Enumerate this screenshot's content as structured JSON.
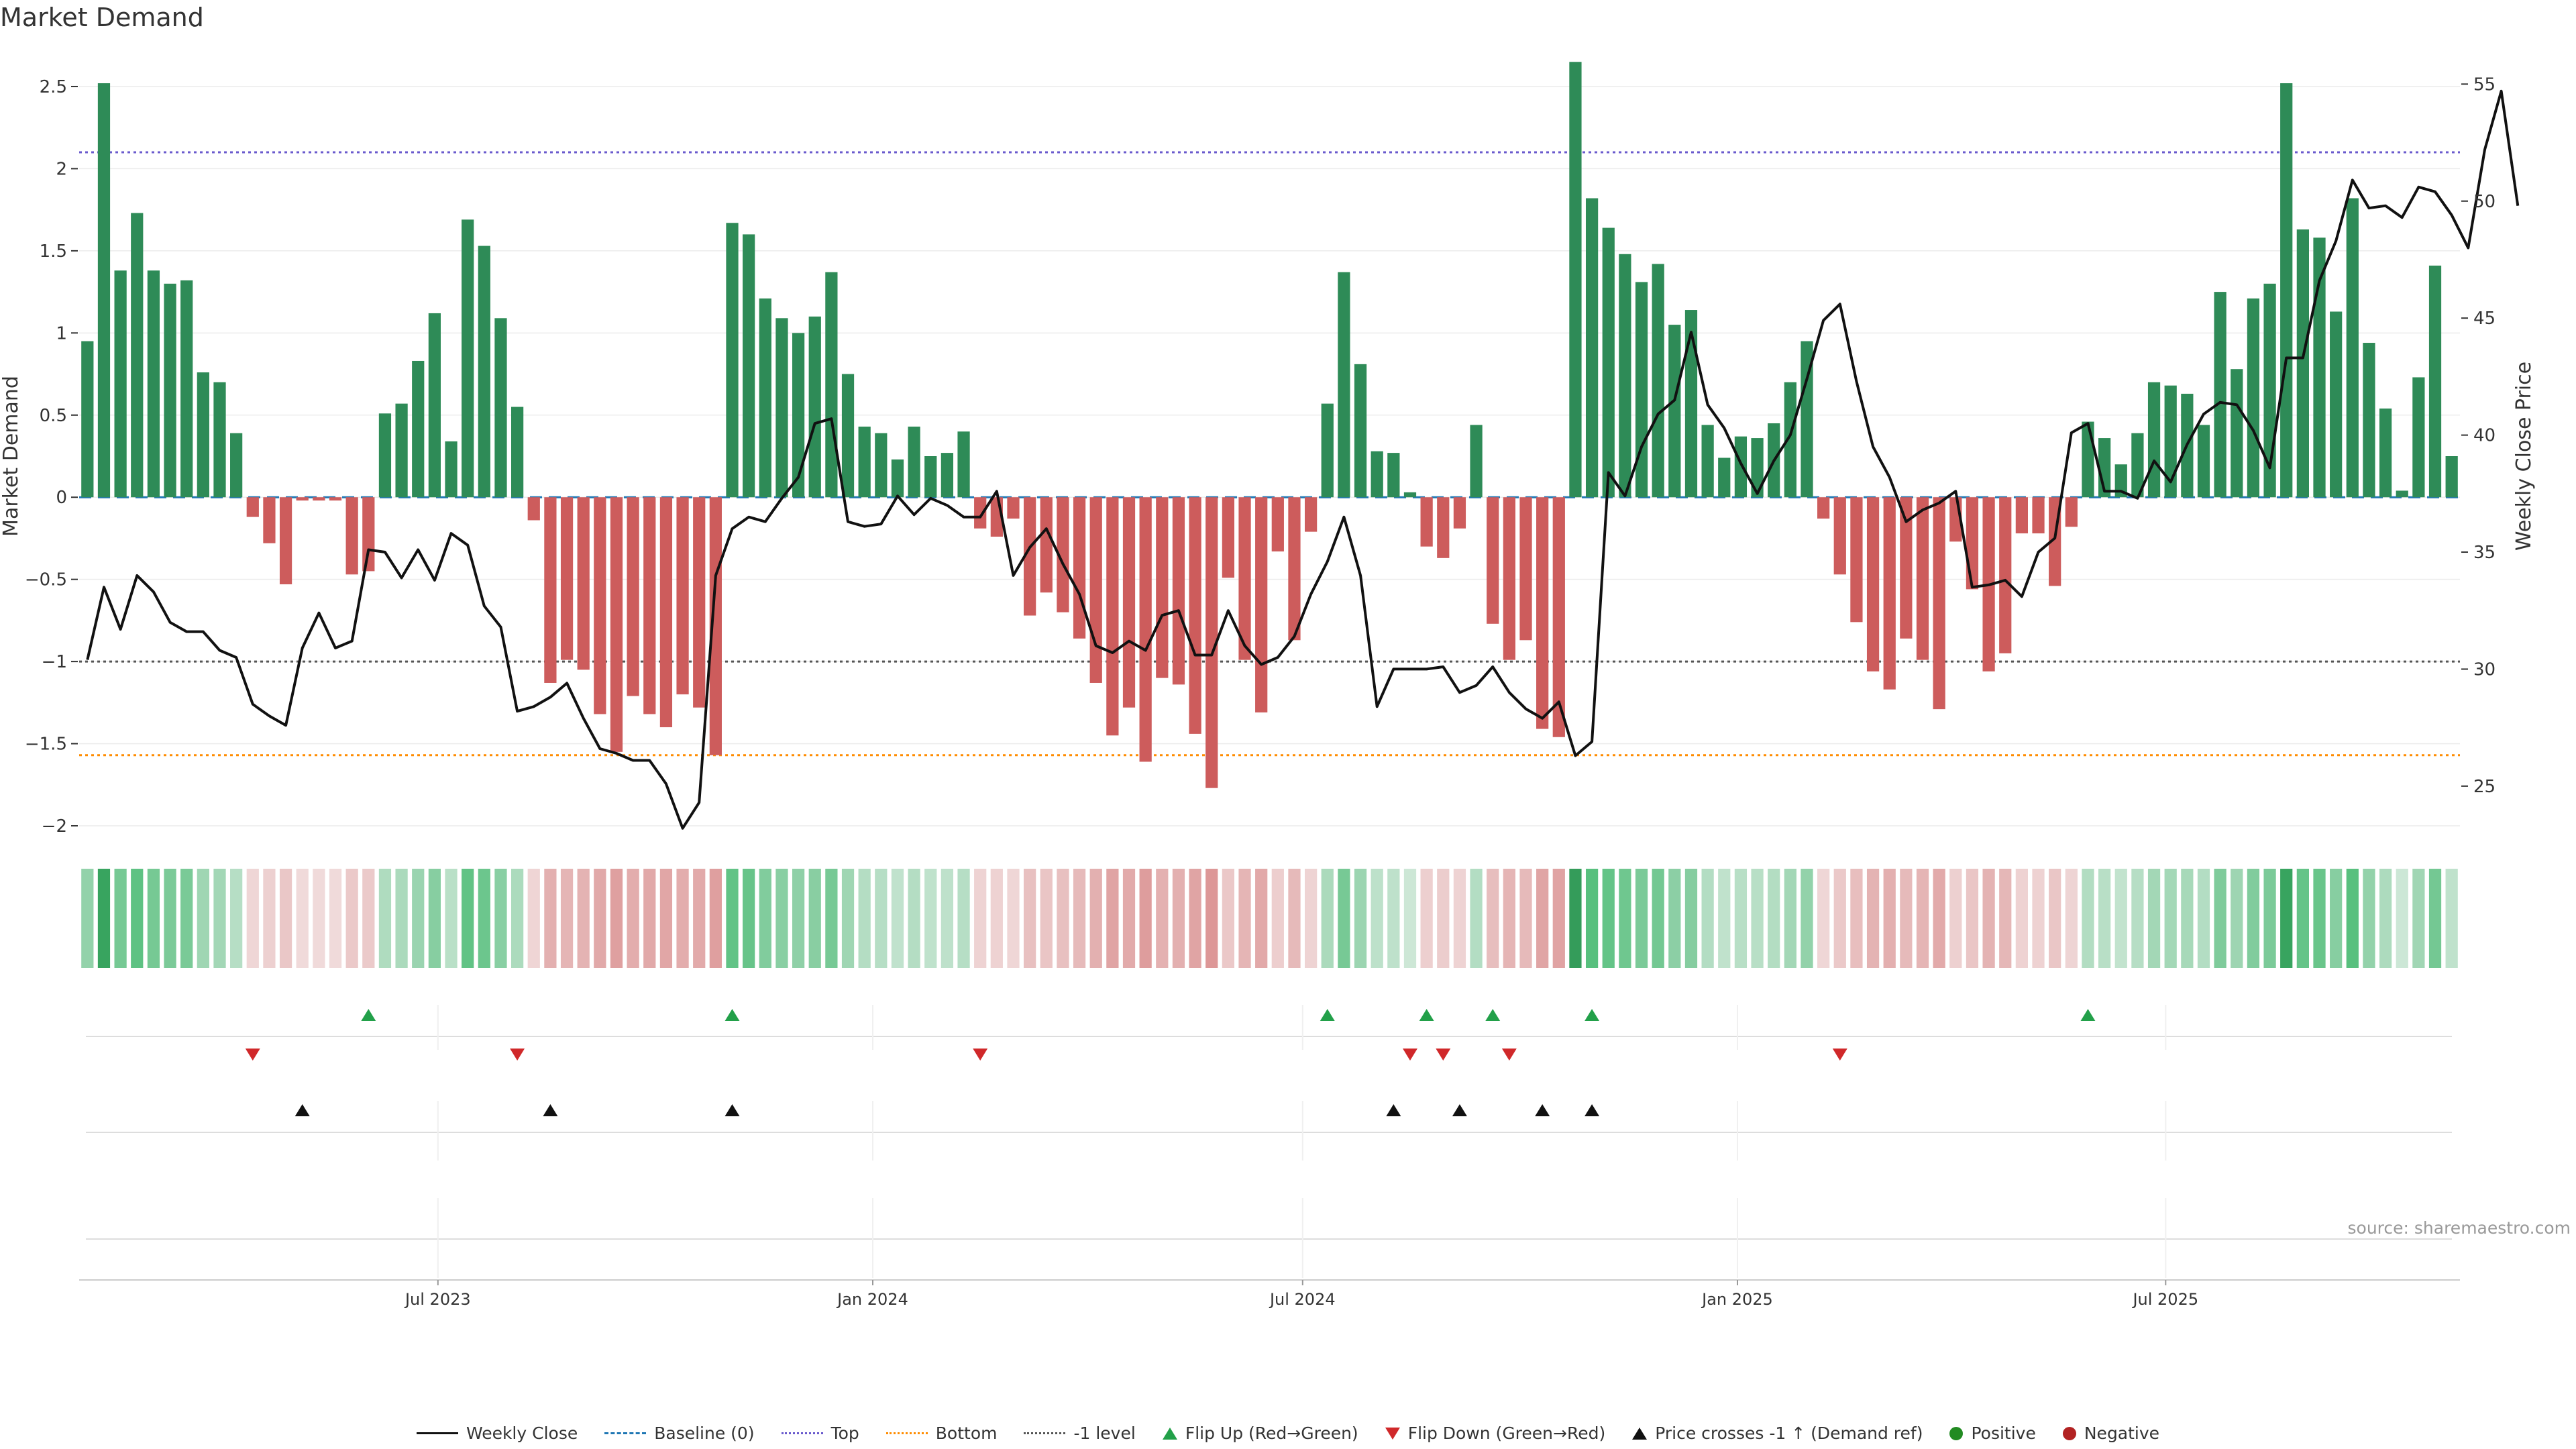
{
  "title": "Market Demand",
  "source": "source: sharemaestro.com",
  "chart_data": {
    "type": "bar",
    "title": "Market Demand",
    "ylabel": "Market Demand",
    "y2label": "Weekly Close Price",
    "ylim": [
      -2.2,
      2.7
    ],
    "y2lim": [
      21.9,
      56.3
    ],
    "yticks": [
      2.5,
      2,
      1.5,
      1,
      0.5,
      0,
      -0.5,
      -1,
      -1.5,
      -2
    ],
    "yticklabels": [
      "2.5",
      "2",
      "1.5",
      "1",
      "0.5",
      "0",
      "−0.5",
      "−1",
      "−1.5",
      "−2"
    ],
    "y2ticks": [
      55,
      50,
      45,
      40,
      35,
      30,
      25
    ],
    "xticks": [
      {
        "label": "Jul 2023",
        "index": 21.2
      },
      {
        "label": "Jan 2024",
        "index": 47.5
      },
      {
        "label": "Jul 2024",
        "index": 73.5
      },
      {
        "label": "Jan 2025",
        "index": 99.8
      },
      {
        "label": "Jul 2025",
        "index": 125.7
      }
    ],
    "reference_lines": {
      "top": 2.1,
      "bottom": -1.57,
      "minus_one": -1.0
    },
    "demand": [
      0.95,
      2.52,
      1.38,
      1.73,
      1.38,
      1.3,
      1.32,
      0.76,
      0.7,
      0.39,
      -0.12,
      -0.28,
      -0.53,
      -0.02,
      -0.02,
      -0.02,
      -0.47,
      -0.45,
      0.51,
      0.57,
      0.83,
      1.12,
      0.34,
      1.69,
      1.53,
      1.09,
      0.55,
      -0.14,
      -1.13,
      -0.99,
      -1.05,
      -1.32,
      -1.55,
      -1.21,
      -1.32,
      -1.4,
      -1.2,
      -1.28,
      -1.57,
      1.67,
      1.6,
      1.21,
      1.09,
      1.0,
      1.1,
      1.37,
      0.75,
      0.43,
      0.39,
      0.23,
      0.43,
      0.25,
      0.27,
      0.4,
      -0.19,
      -0.24,
      -0.13,
      -0.72,
      -0.58,
      -0.7,
      -0.86,
      -1.13,
      -1.45,
      -1.28,
      -1.61,
      -1.1,
      -1.14,
      -1.44,
      -1.77,
      -0.49,
      -0.99,
      -1.31,
      -0.33,
      -0.87,
      -0.21,
      0.57,
      1.37,
      0.81,
      0.28,
      0.27,
      0.03,
      -0.3,
      -0.37,
      -0.19,
      0.44,
      -0.77,
      -0.99,
      -0.87,
      -1.41,
      -1.46,
      2.65,
      1.82,
      1.64,
      1.48,
      1.31,
      1.42,
      1.05,
      1.14,
      0.44,
      0.24,
      0.37,
      0.36,
      0.45,
      0.7,
      0.95,
      -0.13,
      -0.47,
      -0.76,
      -1.06,
      -1.17,
      -0.86,
      -0.99,
      -1.29,
      -0.27,
      -0.56,
      -1.06,
      -0.95,
      -0.22,
      -0.22,
      -0.54,
      -0.18,
      0.46,
      0.36,
      0.2,
      0.39,
      0.7,
      0.68,
      0.63,
      0.44,
      1.25,
      0.78,
      1.21,
      1.3,
      2.52,
      1.63,
      1.58,
      1.13,
      1.82,
      0.94,
      0.54,
      0.04,
      0.73,
      1.41,
      0.25
    ],
    "weekly_close": [
      30.4,
      33.5,
      31.7,
      34.0,
      33.3,
      32.0,
      31.6,
      31.6,
      30.8,
      30.5,
      28.5,
      28.0,
      27.6,
      30.9,
      32.4,
      30.9,
      31.2,
      35.1,
      35.0,
      33.9,
      35.1,
      33.8,
      35.8,
      35.3,
      32.7,
      31.8,
      28.2,
      28.4,
      28.8,
      29.4,
      27.9,
      26.6,
      26.4,
      26.1,
      26.1,
      25.1,
      23.2,
      24.3,
      34.0,
      36.0,
      36.5,
      36.3,
      37.3,
      38.2,
      40.5,
      40.7,
      36.3,
      36.1,
      36.2,
      37.4,
      36.6,
      37.3,
      37.0,
      36.5,
      36.5,
      37.6,
      34.0,
      35.2,
      36.0,
      34.5,
      33.2,
      31.0,
      30.7,
      31.2,
      30.8,
      32.3,
      32.5,
      30.6,
      30.6,
      32.5,
      31.0,
      30.2,
      30.5,
      31.4,
      33.2,
      34.6,
      36.5,
      34.0,
      28.4,
      30.0,
      30.0,
      30.0,
      30.1,
      29.0,
      29.3,
      30.1,
      29.0,
      28.3,
      27.9,
      28.6,
      26.3,
      26.9,
      38.4,
      37.4,
      39.5,
      40.9,
      41.5,
      44.4,
      41.3,
      40.3,
      38.8,
      37.5,
      38.9,
      40.0,
      42.4,
      44.9,
      45.6,
      42.3,
      39.5,
      38.2,
      36.3,
      36.8,
      37.1,
      37.6,
      33.5,
      33.6,
      33.8,
      33.1,
      35.0,
      35.6,
      40.1,
      40.5,
      37.6,
      37.6,
      37.3,
      38.9,
      38.0,
      39.6,
      40.9,
      41.4,
      41.3,
      40.2,
      38.6,
      43.3,
      43.3,
      46.6,
      48.3,
      50.9,
      49.7,
      49.8,
      49.3,
      50.6,
      50.4,
      49.4,
      48.0,
      52.2,
      54.7,
      49.8
    ],
    "flip_up_indices": [
      17,
      39,
      75,
      81,
      85,
      91,
      121
    ],
    "flip_down_indices": [
      10,
      26,
      54,
      80,
      82,
      86,
      106
    ],
    "price_cross_indices": [
      13,
      28,
      39,
      79,
      83,
      88,
      91
    ],
    "legend": [
      "Weekly Close",
      "Baseline (0)",
      "Top",
      "Bottom",
      "-1 level",
      "Flip Up (Red→Green)",
      "Flip Down (Green→Red)",
      "Price crosses -1 ↑ (Demand ref)",
      "Positive",
      "Negative"
    ]
  },
  "colors": {
    "positive": "#2e8b57",
    "negative": "#cd5c5c",
    "flip_up": "#22a049",
    "flip_down": "#d0282a",
    "cross": "#111111",
    "top_line": "#6a5acd",
    "bottom_line": "#ff8c00",
    "minus_one_line": "#555555",
    "baseline": "#1f77b4",
    "dot_positive": "#228b22",
    "dot_negative": "#b22222"
  }
}
